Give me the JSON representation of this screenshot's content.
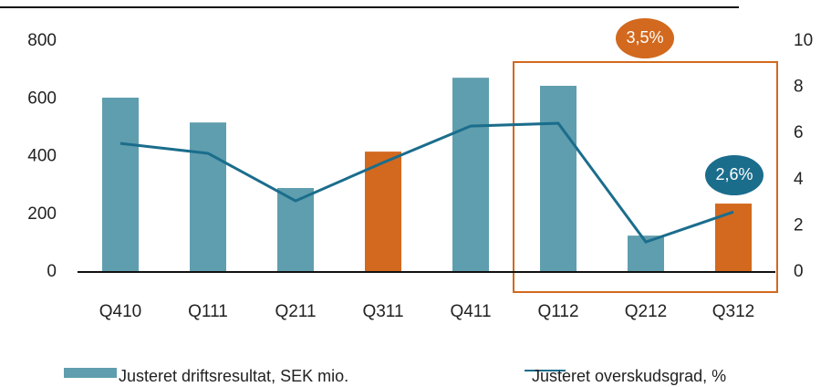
{
  "chart_data": {
    "type": "bar",
    "categories": [
      "Q410",
      "Q111",
      "Q211",
      "Q311",
      "Q411",
      "Q112",
      "Q212",
      "Q312"
    ],
    "series": [
      {
        "name": "Justeret driftsresultat, SEK mio.",
        "type": "bar",
        "colors": [
          "#5f9eae",
          "#5f9eae",
          "#5f9eae",
          "#d2691e",
          "#5f9eae",
          "#5f9eae",
          "#5f9eae",
          "#d2691e"
        ],
        "values": [
          604,
          518,
          291,
          417,
          673,
          645,
          126,
          237
        ]
      },
      {
        "name": "Justeret overskudsgrad, %",
        "type": "line",
        "color": "#1b6d8c",
        "axis": "y2",
        "values": [
          5.57,
          5.14,
          3.08,
          4.74,
          6.32,
          6.44,
          1.3,
          2.6
        ]
      }
    ],
    "ylim": [
      0,
      800
    ],
    "yticks": [
      0,
      200,
      400,
      600,
      800
    ],
    "y2lim": [
      0,
      10
    ],
    "y2ticks": [
      0,
      2,
      4,
      6,
      8,
      10
    ],
    "annotations": [
      {
        "text": "3,5%",
        "color": "#d2691e"
      },
      {
        "text": "2,6%",
        "color": "#1b6d8c"
      }
    ],
    "highlight_color": "#d2691e"
  }
}
